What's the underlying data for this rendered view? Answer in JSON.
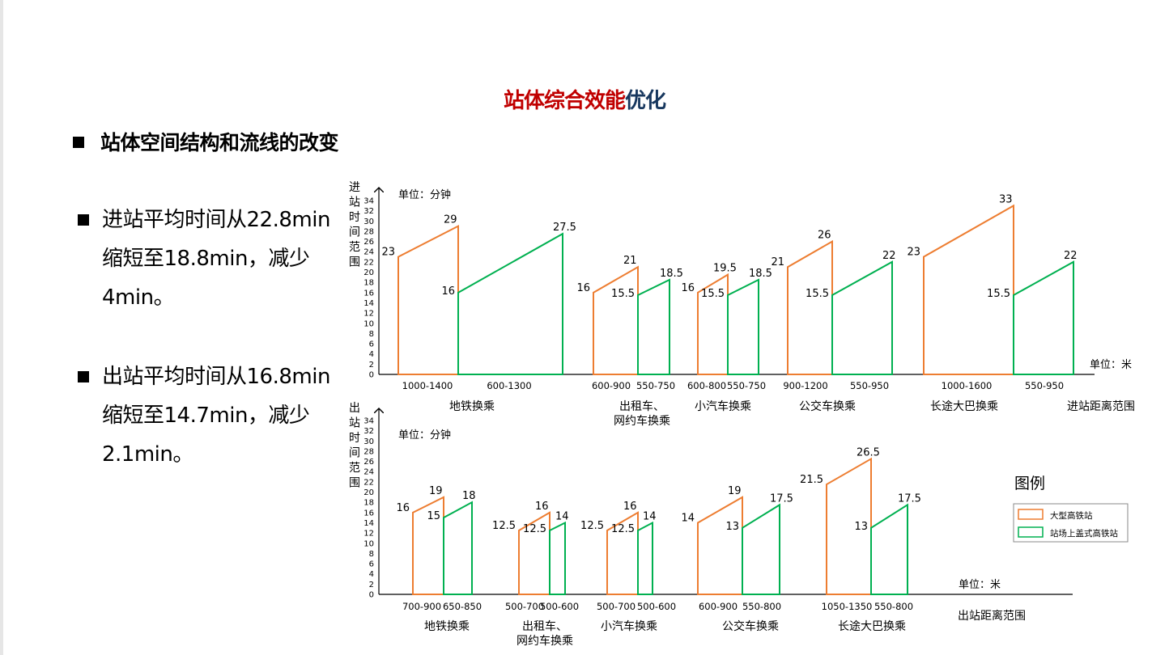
{
  "title": {
    "part1": "站体综合效能",
    "part2": "优化"
  },
  "subhead": "站体空间结构和流线的改变",
  "bullets": [
    {
      "text": "进站平均时间从22.8min缩短至18.8min，减少4min。"
    },
    {
      "text": "出站平均时间从16.8min缩短至14.7min，减少2.1min。"
    }
  ],
  "colors": {
    "large": "#ed7d31",
    "cover": "#00b050",
    "title_red": "#c00000",
    "title_blue": "#17375e"
  },
  "legend": {
    "title": "图例",
    "items": [
      "大型高铁站",
      "站场上盖式高铁站"
    ]
  },
  "chart_data": [
    {
      "type": "line",
      "ylabel": "进站时间范围",
      "unit_y": "单位：分钟",
      "unit_x": "单位：米",
      "xlabel": "进站距离范围",
      "ylim": [
        0,
        34
      ],
      "yticks": [
        0,
        2,
        4,
        6,
        8,
        10,
        12,
        14,
        16,
        18,
        20,
        22,
        24,
        26,
        28,
        30,
        32,
        34
      ],
      "groups": [
        {
          "name": "地铁换乘",
          "large": {
            "range": "1000-1400",
            "start": 23,
            "end": 29
          },
          "cover": {
            "range": "600-1300",
            "start": 16,
            "end": 27.5
          }
        },
        {
          "name": "出租车、网约车换乘",
          "large": {
            "range": "600-900",
            "start": 16,
            "end": 21
          },
          "cover": {
            "range": "550-750",
            "start": 15.5,
            "end": 18.5
          }
        },
        {
          "name": "小汽车换乘",
          "large": {
            "range": "600-800",
            "start": 16,
            "end": 19.5
          },
          "cover": {
            "range": "550-750",
            "start": 15.5,
            "end": 18.5
          }
        },
        {
          "name": "公交车换乘",
          "large": {
            "range": "900-1200",
            "start": 21,
            "end": 26
          },
          "cover": {
            "range": "550-950",
            "start": 15.5,
            "end": 22
          }
        },
        {
          "name": "长途大巴换乘",
          "large": {
            "range": "1000-1600",
            "start": 23,
            "end": 33
          },
          "cover": {
            "range": "550-950",
            "start": 15.5,
            "end": 22
          }
        }
      ]
    },
    {
      "type": "line",
      "ylabel": "出站时间范围",
      "unit_y": "单位：分钟",
      "unit_x": "单位：米",
      "xlabel": "出站距离范围",
      "ylim": [
        0,
        34
      ],
      "yticks": [
        0,
        2,
        4,
        6,
        8,
        10,
        12,
        14,
        16,
        18,
        20,
        22,
        24,
        26,
        28,
        30,
        32,
        34
      ],
      "groups": [
        {
          "name": "地铁换乘",
          "large": {
            "range": "700-900",
            "start": 16,
            "end": 19
          },
          "cover": {
            "range": "650-850",
            "start": 15,
            "end": 18
          }
        },
        {
          "name": "出租车、网约车换乘",
          "large": {
            "range": "500-700",
            "start": 12.5,
            "end": 16
          },
          "cover": {
            "range": "500-600",
            "start": 12.5,
            "end": 14
          }
        },
        {
          "name": "小汽车换乘",
          "large": {
            "range": "500-700",
            "start": 12.5,
            "end": 16
          },
          "cover": {
            "range": "500-600",
            "start": 12.5,
            "end": 14
          }
        },
        {
          "name": "公交车换乘",
          "large": {
            "range": "600-900",
            "start": 14,
            "end": 19
          },
          "cover": {
            "range": "550-800",
            "start": 13,
            "end": 17.5
          }
        },
        {
          "name": "长途大巴换乘",
          "large": {
            "range": "1050-1350",
            "start": 21.5,
            "end": 26.5
          },
          "cover": {
            "range": "550-800",
            "start": 13,
            "end": 17.5
          }
        }
      ]
    }
  ]
}
